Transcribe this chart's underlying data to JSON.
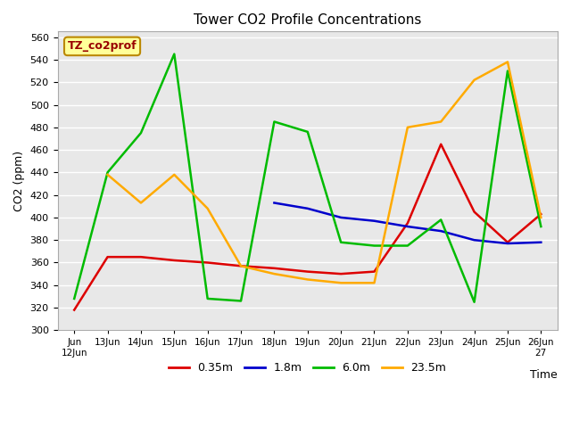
{
  "title": "Tower CO2 Profile Concentrations",
  "xlabel": "Time",
  "ylabel": "CO2 (ppm)",
  "ylim": [
    300,
    565
  ],
  "yticks": [
    300,
    320,
    340,
    360,
    380,
    400,
    420,
    440,
    460,
    480,
    500,
    520,
    540,
    560
  ],
  "plot_bg_color": "#e8e8e8",
  "x_values": [
    0,
    1,
    2,
    3,
    4,
    5,
    6,
    7,
    8,
    9,
    10,
    11,
    12,
    13,
    14
  ],
  "x_tick_labels": [
    "Jun\n12Jun",
    "13Jun",
    "14Jun",
    "15Jun",
    "16Jun",
    "17Jun",
    "18Jun",
    "19Jun",
    "20Jun",
    "21Jun",
    "22Jun",
    "23Jun",
    "24Jun",
    "25Jun",
    "26Jun\n27"
  ],
  "series": {
    "0.35m": {
      "color": "#dd0000",
      "values": [
        318,
        365,
        365,
        362,
        360,
        357,
        355,
        352,
        350,
        352,
        395,
        465,
        405,
        378,
        403
      ]
    },
    "1.8m": {
      "color": "#0000cc",
      "values": [
        null,
        null,
        null,
        null,
        null,
        null,
        413,
        408,
        400,
        397,
        392,
        388,
        380,
        377,
        378
      ]
    },
    "6.0m": {
      "color": "#00bb00",
      "values": [
        328,
        440,
        475,
        545,
        328,
        326,
        485,
        476,
        378,
        375,
        375,
        398,
        325,
        530,
        392
      ]
    },
    "23.5m": {
      "color": "#ffaa00",
      "values": [
        null,
        438,
        413,
        438,
        408,
        357,
        350,
        345,
        342,
        342,
        480,
        485,
        522,
        538,
        400
      ]
    }
  },
  "legend_label": "TZ_co2prof",
  "legend_bg": "#ffff99",
  "legend_border": "#bb8800",
  "legend_text_color": "#990000"
}
